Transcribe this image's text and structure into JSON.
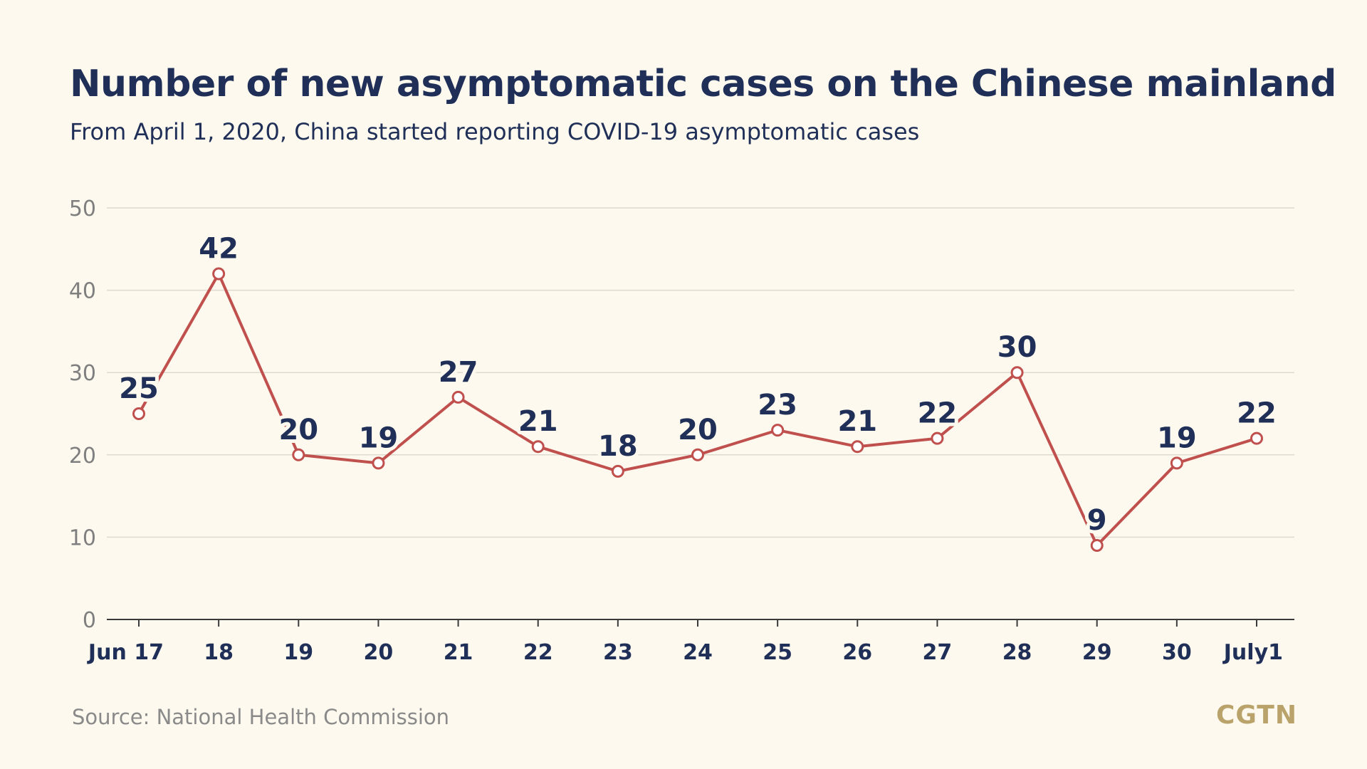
{
  "title": "Number of new asymptomatic cases on the Chinese mainland",
  "subtitle": "From April 1, 2020, China started reporting COVID-19 asymptomatic cases",
  "source": "Source: National Health Commission",
  "brand": "CGTN",
  "colors": {
    "background": "#fdf9ee",
    "title": "#1f2f57",
    "line": "#c0504d",
    "grid": "#dedad0",
    "brand": "#b9a36a"
  },
  "chart_data": {
    "type": "line",
    "categories": [
      "Jun 17",
      "18",
      "19",
      "20",
      "21",
      "22",
      "23",
      "24",
      "25",
      "26",
      "27",
      "28",
      "29",
      "30",
      "July1"
    ],
    "series": [
      {
        "values": [
          25,
          42,
          20,
          19,
          27,
          21,
          18,
          20,
          23,
          21,
          22,
          30,
          9,
          19,
          22
        ]
      }
    ],
    "data_labels": [
      "25",
      "42",
      "20",
      "19",
      "27",
      "21",
      "18",
      "20",
      "23",
      "21",
      "22",
      "30",
      "9",
      "19",
      "22"
    ],
    "y_ticks": [
      "0",
      "10",
      "20",
      "30",
      "40",
      "50"
    ],
    "ylim": [
      0,
      50
    ],
    "grid": true,
    "legend": "none"
  }
}
